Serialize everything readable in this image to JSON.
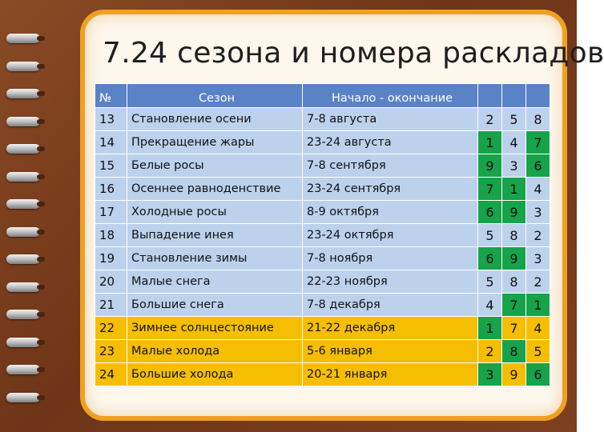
{
  "title": "7.24 сезона и номера раскладов",
  "colors": {
    "header": "#5a82c7",
    "row_blue": "#bcd1ec",
    "row_orange": "#f6be00",
    "highlight_green": "#16a34a",
    "frame": "#f0a020",
    "cover": "#7a3d1e"
  },
  "table": {
    "headers": {
      "no": "№",
      "season": "Сезон",
      "dates": "Начало - окончание",
      "n1": "",
      "n2": "",
      "n3": ""
    },
    "rows": [
      {
        "no": "13",
        "season": "Становление осени",
        "dates": "7-8 августа",
        "n1": "2",
        "n2": "5",
        "n3": "8",
        "row_color": "blue",
        "green": []
      },
      {
        "no": "14",
        "season": "Прекращение жары",
        "dates": "23-24 августа",
        "n1": "1",
        "n2": "4",
        "n3": "7",
        "row_color": "blue",
        "green": [
          "n1",
          "n3"
        ]
      },
      {
        "no": "15",
        "season": "Белые росы",
        "dates": "7-8 сентября",
        "n1": "9",
        "n2": "3",
        "n3": "6",
        "row_color": "blue",
        "green": [
          "n1",
          "n3"
        ]
      },
      {
        "no": "16",
        "season": "Осеннее равноденствие",
        "dates": "23-24 сентября",
        "n1": "7",
        "n2": "1",
        "n3": "4",
        "row_color": "blue",
        "green": [
          "n1",
          "n2"
        ]
      },
      {
        "no": "17",
        "season": "Холодные росы",
        "dates": "8-9 октября",
        "n1": "6",
        "n2": "9",
        "n3": "3",
        "row_color": "blue",
        "green": [
          "n1",
          "n2"
        ]
      },
      {
        "no": "18",
        "season": "Выпадение инея",
        "dates": "23-24 октября",
        "n1": "5",
        "n2": "8",
        "n3": "2",
        "row_color": "blue",
        "green": []
      },
      {
        "no": "19",
        "season": "Становление зимы",
        "dates": "7-8 ноября",
        "n1": "6",
        "n2": "9",
        "n3": "3",
        "row_color": "blue",
        "green": [
          "n1",
          "n2"
        ]
      },
      {
        "no": "20",
        "season": "Малые снега",
        "dates": "22-23 ноября",
        "n1": "5",
        "n2": "8",
        "n3": "2",
        "row_color": "blue",
        "green": []
      },
      {
        "no": "21",
        "season": "Большие снега",
        "dates": "7-8 декабря",
        "n1": "4",
        "n2": "7",
        "n3": "1",
        "row_color": "blue",
        "green": [
          "n2",
          "n3"
        ]
      },
      {
        "no": "22",
        "season": "Зимнее солнцестояние",
        "dates": "21-22 декабря",
        "n1": "1",
        "n2": "7",
        "n3": "4",
        "row_color": "orange",
        "green": [
          "n1"
        ]
      },
      {
        "no": "23",
        "season": "Малые холода",
        "dates": "5-6 января",
        "n1": "2",
        "n2": "8",
        "n3": "5",
        "row_color": "orange",
        "green": [
          "n2"
        ]
      },
      {
        "no": "24",
        "season": "Большие холода",
        "dates": "20-21 января",
        "n1": "3",
        "n2": "9",
        "n3": "6",
        "row_color": "orange",
        "green": [
          "n1",
          "n3"
        ]
      }
    ]
  }
}
